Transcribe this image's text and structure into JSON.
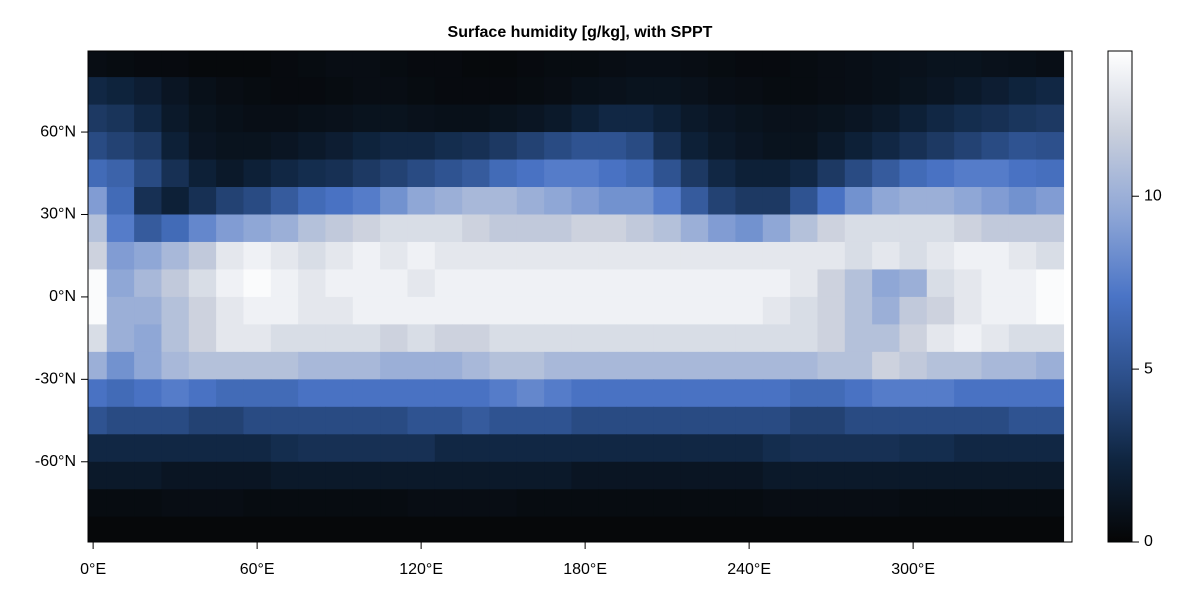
{
  "chart_data": {
    "type": "heatmap",
    "title": "Surface humidity [g/kg], with SPPT",
    "x": [
      0,
      10,
      20,
      30,
      40,
      50,
      60,
      70,
      80,
      90,
      100,
      110,
      120,
      130,
      140,
      150,
      160,
      170,
      180,
      190,
      200,
      210,
      220,
      230,
      240,
      250,
      260,
      270,
      280,
      290,
      300,
      310,
      320,
      330,
      340,
      350
    ],
    "y": [
      85,
      75,
      65,
      55,
      45,
      35,
      25,
      15,
      5,
      -5,
      -15,
      -25,
      -35,
      -45,
      -55,
      -65,
      -75,
      -85
    ],
    "z": [
      [
        0.6,
        0.5,
        0.4,
        0.4,
        0.3,
        0.3,
        0.3,
        0.4,
        0.5,
        0.6,
        0.6,
        0.5,
        0.4,
        0.4,
        0.3,
        0.3,
        0.4,
        0.5,
        0.5,
        0.6,
        0.7,
        0.7,
        0.6,
        0.5,
        0.4,
        0.4,
        0.5,
        0.6,
        0.7,
        0.8,
        0.9,
        1.0,
        1.0,
        0.9,
        0.8,
        0.7
      ],
      [
        2.5,
        2.2,
        1.8,
        1.2,
        0.8,
        0.6,
        0.5,
        0.4,
        0.4,
        0.5,
        0.6,
        0.6,
        0.5,
        0.4,
        0.4,
        0.4,
        0.5,
        0.6,
        0.8,
        0.9,
        1.0,
        1.0,
        0.9,
        0.7,
        0.6,
        0.5,
        0.5,
        0.6,
        0.7,
        0.8,
        1.0,
        1.2,
        1.5,
        1.8,
        2.2,
        2.5
      ],
      [
        3.5,
        3.2,
        2.5,
        1.5,
        1.0,
        0.8,
        0.7,
        0.7,
        0.8,
        0.9,
        1.0,
        1.0,
        0.9,
        0.8,
        0.8,
        1.0,
        1.2,
        1.5,
        2.0,
        2.5,
        2.5,
        2.0,
        1.5,
        1.2,
        1.0,
        0.9,
        0.9,
        1.0,
        1.2,
        1.5,
        2.0,
        2.5,
        2.8,
        3.0,
        3.3,
        3.5
      ],
      [
        4.5,
        4.0,
        3.5,
        2.0,
        1.2,
        1.0,
        1.0,
        1.2,
        1.5,
        1.8,
        2.2,
        2.5,
        2.5,
        2.8,
        3.0,
        3.5,
        4.0,
        4.5,
        5.0,
        5.0,
        4.5,
        3.0,
        2.0,
        1.5,
        1.2,
        1.0,
        1.0,
        1.5,
        2.0,
        2.5,
        3.0,
        3.5,
        4.0,
        4.5,
        5.0,
        4.8
      ],
      [
        6.5,
        6.0,
        4.5,
        3.0,
        2.0,
        1.5,
        2.0,
        2.5,
        2.8,
        3.0,
        3.5,
        4.0,
        4.5,
        5.0,
        5.5,
        6.5,
        7.0,
        7.5,
        7.5,
        7.0,
        6.5,
        5.0,
        3.5,
        2.5,
        2.0,
        2.0,
        2.5,
        3.5,
        4.5,
        5.5,
        6.5,
        7.0,
        7.5,
        7.5,
        7.0,
        6.8
      ],
      [
        9.0,
        6.5,
        3.0,
        2.0,
        3.0,
        4.0,
        4.5,
        5.5,
        6.5,
        7.0,
        7.5,
        8.5,
        9.5,
        10.0,
        10.5,
        10.5,
        10.0,
        9.5,
        9.0,
        8.5,
        8.5,
        7.5,
        5.5,
        4.0,
        3.5,
        3.5,
        5.0,
        7.0,
        8.5,
        9.5,
        10.0,
        10.0,
        9.5,
        9.0,
        8.5,
        9.0
      ],
      [
        11.0,
        7.5,
        5.5,
        6.5,
        8.0,
        9.0,
        9.5,
        10.0,
        11.0,
        11.5,
        12.0,
        12.5,
        12.5,
        12.5,
        12.0,
        11.5,
        11.5,
        11.5,
        12.0,
        12.0,
        11.5,
        11.0,
        10.0,
        9.0,
        8.5,
        9.5,
        11.0,
        12.0,
        12.5,
        12.5,
        12.5,
        12.5,
        12.0,
        11.5,
        11.5,
        11.5
      ],
      [
        12.0,
        9.0,
        9.5,
        10.5,
        11.5,
        13.0,
        13.5,
        13.0,
        12.5,
        13.0,
        13.5,
        13.0,
        13.5,
        13.0,
        13.0,
        13.0,
        13.0,
        13.0,
        13.0,
        13.0,
        13.0,
        13.0,
        13.0,
        13.0,
        13.0,
        13.0,
        13.0,
        13.0,
        12.5,
        13.0,
        12.5,
        13.0,
        13.5,
        13.5,
        13.0,
        12.5
      ],
      [
        14.0,
        9.5,
        10.5,
        11.5,
        12.5,
        13.5,
        14.0,
        13.5,
        13.0,
        13.5,
        13.5,
        13.5,
        13.0,
        13.5,
        13.5,
        13.5,
        13.5,
        13.5,
        13.5,
        13.5,
        13.5,
        13.5,
        13.5,
        13.5,
        13.5,
        13.5,
        13.0,
        12.0,
        11.0,
        9.5,
        10.0,
        12.5,
        13.0,
        13.5,
        13.5,
        14.0
      ],
      [
        14.0,
        10.0,
        10.0,
        11.0,
        12.0,
        13.0,
        13.5,
        13.5,
        13.0,
        13.0,
        13.5,
        13.5,
        13.5,
        13.5,
        13.5,
        13.5,
        13.5,
        13.5,
        13.5,
        13.5,
        13.5,
        13.5,
        13.5,
        13.5,
        13.5,
        13.0,
        12.5,
        12.0,
        11.0,
        10.0,
        11.5,
        12.0,
        13.0,
        13.5,
        13.5,
        14.0
      ],
      [
        12.5,
        10.0,
        9.5,
        11.0,
        12.0,
        13.0,
        13.0,
        12.5,
        12.5,
        12.5,
        12.5,
        12.0,
        12.5,
        12.0,
        12.0,
        12.5,
        12.5,
        12.5,
        12.5,
        12.5,
        12.5,
        12.5,
        12.5,
        12.5,
        12.5,
        12.5,
        12.5,
        12.0,
        11.0,
        11.0,
        12.0,
        13.0,
        13.5,
        13.0,
        12.5,
        12.5
      ],
      [
        10.0,
        8.5,
        9.5,
        10.5,
        11.0,
        11.0,
        11.0,
        11.0,
        10.5,
        10.5,
        10.5,
        10.0,
        10.0,
        10.0,
        10.5,
        11.0,
        11.0,
        10.5,
        10.5,
        10.5,
        10.5,
        10.5,
        10.5,
        10.5,
        10.5,
        10.5,
        10.5,
        11.0,
        11.0,
        12.0,
        11.5,
        11.0,
        11.0,
        10.5,
        10.5,
        10.0
      ],
      [
        7.0,
        6.5,
        7.0,
        7.5,
        7.0,
        6.5,
        6.5,
        6.5,
        7.0,
        7.0,
        7.0,
        7.0,
        7.0,
        7.0,
        7.0,
        7.5,
        8.0,
        7.5,
        7.0,
        7.0,
        7.0,
        7.0,
        7.0,
        7.0,
        7.0,
        7.0,
        6.5,
        6.5,
        7.0,
        7.5,
        7.5,
        7.5,
        7.0,
        7.0,
        7.0,
        7.0
      ],
      [
        5.0,
        4.5,
        4.5,
        4.5,
        4.0,
        4.0,
        4.5,
        4.5,
        4.5,
        4.5,
        4.5,
        4.5,
        5.0,
        5.0,
        5.5,
        5.0,
        5.0,
        5.0,
        4.5,
        4.5,
        4.5,
        4.5,
        4.5,
        4.5,
        4.5,
        4.5,
        4.0,
        4.0,
        4.5,
        4.5,
        4.5,
        4.5,
        4.5,
        4.5,
        5.0,
        5.0
      ],
      [
        2.5,
        2.5,
        2.5,
        2.5,
        2.5,
        2.5,
        2.5,
        2.8,
        3.0,
        3.0,
        3.0,
        3.0,
        3.0,
        2.5,
        2.5,
        2.5,
        2.5,
        2.5,
        2.5,
        2.5,
        2.5,
        2.5,
        2.5,
        2.5,
        2.5,
        2.8,
        3.0,
        3.0,
        3.0,
        3.0,
        2.8,
        2.8,
        2.5,
        2.5,
        2.5,
        2.5
      ],
      [
        1.5,
        1.5,
        1.5,
        1.2,
        1.2,
        1.2,
        1.2,
        1.5,
        1.5,
        1.5,
        1.5,
        1.5,
        1.5,
        1.5,
        1.5,
        1.5,
        1.5,
        1.5,
        1.2,
        1.2,
        1.2,
        1.2,
        1.2,
        1.2,
        1.2,
        1.5,
        1.5,
        1.5,
        1.5,
        1.5,
        1.5,
        1.5,
        1.5,
        1.5,
        1.5,
        1.5
      ],
      [
        0.5,
        0.5,
        0.5,
        0.6,
        0.6,
        0.6,
        0.5,
        0.5,
        0.5,
        0.5,
        0.5,
        0.5,
        0.6,
        0.6,
        0.6,
        0.6,
        0.5,
        0.5,
        0.5,
        0.5,
        0.5,
        0.5,
        0.5,
        0.5,
        0.5,
        0.6,
        0.6,
        0.6,
        0.6,
        0.6,
        0.5,
        0.5,
        0.5,
        0.5,
        0.5,
        0.5
      ],
      [
        0.2,
        0.2,
        0.2,
        0.2,
        0.2,
        0.2,
        0.2,
        0.2,
        0.2,
        0.2,
        0.2,
        0.2,
        0.2,
        0.2,
        0.2,
        0.2,
        0.2,
        0.2,
        0.2,
        0.2,
        0.2,
        0.2,
        0.2,
        0.2,
        0.2,
        0.2,
        0.2,
        0.2,
        0.2,
        0.2,
        0.2,
        0.2,
        0.2,
        0.2,
        0.2,
        0.2
      ]
    ],
    "xlim": [
      -1.875,
      358.125
    ],
    "ylim": [
      -89.2,
      89.5
    ],
    "xticks": [
      {
        "value": 0,
        "label": "0°E"
      },
      {
        "value": 60,
        "label": "60°E"
      },
      {
        "value": 120,
        "label": "120°E"
      },
      {
        "value": 180,
        "label": "180°E"
      },
      {
        "value": 240,
        "label": "240°E"
      },
      {
        "value": 300,
        "label": "300°E"
      }
    ],
    "yticks": [
      {
        "value": 60,
        "label": "60°N"
      },
      {
        "value": 30,
        "label": "30°N"
      },
      {
        "value": 0,
        "label": "0°N"
      },
      {
        "value": -30,
        "label": "-30°N"
      },
      {
        "value": -60,
        "label": "-60°N"
      }
    ],
    "clim": [
      0,
      14.2
    ],
    "cticks": [
      0,
      5,
      10
    ],
    "colormap": [
      "#050505",
      "#0f2540",
      "#2c4f8a",
      "#4a74c6",
      "#8ea6d6",
      "#c9cfdc",
      "#ffffff"
    ]
  }
}
